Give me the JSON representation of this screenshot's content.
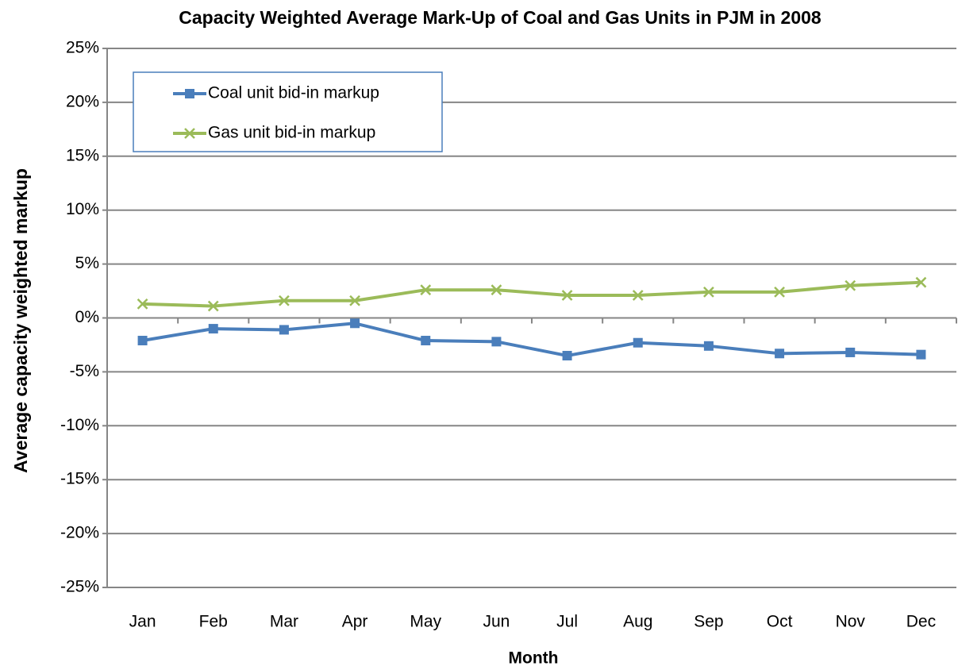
{
  "chart_data": {
    "type": "line",
    "title": "Capacity Weighted Average Mark-Up of Coal and Gas Units in PJM in 2008",
    "xlabel": "Month",
    "ylabel": "Average capacity weighted markup",
    "categories": [
      "Jan",
      "Feb",
      "Mar",
      "Apr",
      "May",
      "Jun",
      "Jul",
      "Aug",
      "Sep",
      "Oct",
      "Nov",
      "Dec"
    ],
    "series": [
      {
        "name": "Coal unit bid-in markup",
        "color": "#4a7ebb",
        "marker": "square",
        "values": [
          -2.1,
          -1.0,
          -1.1,
          -0.5,
          -2.1,
          -2.2,
          -3.5,
          -2.3,
          -2.6,
          -3.3,
          -3.2,
          -3.4
        ]
      },
      {
        "name": "Gas unit bid-in markup",
        "color": "#9bbb59",
        "marker": "x",
        "values": [
          1.3,
          1.1,
          1.6,
          1.6,
          2.6,
          2.6,
          2.1,
          2.1,
          2.4,
          2.4,
          3.0,
          3.3
        ]
      }
    ],
    "ylim": [
      -25,
      25
    ],
    "yticks": [
      {
        "value": -25,
        "label": "-25%"
      },
      {
        "value": -20,
        "label": "-20%"
      },
      {
        "value": -15,
        "label": "-15%"
      },
      {
        "value": -10,
        "label": "-10%"
      },
      {
        "value": -5,
        "label": "-5%"
      },
      {
        "value": 0,
        "label": "0%"
      },
      {
        "value": 5,
        "label": "5%"
      },
      {
        "value": 10,
        "label": "10%"
      },
      {
        "value": 15,
        "label": "15%"
      },
      {
        "value": 20,
        "label": "20%"
      },
      {
        "value": 25,
        "label": "25%"
      }
    ],
    "grid": true,
    "legend": "upper left"
  }
}
